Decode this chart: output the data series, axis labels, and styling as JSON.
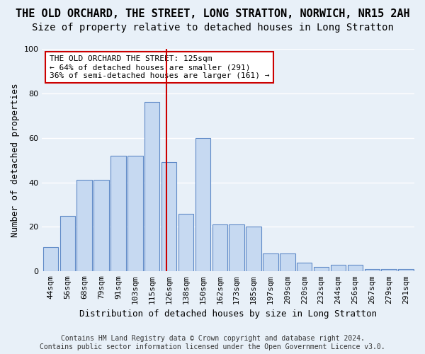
{
  "title": "THE OLD ORCHARD, THE STREET, LONG STRATTON, NORWICH, NR15 2AH",
  "subtitle": "Size of property relative to detached houses in Long Stratton",
  "xlabel": "Distribution of detached houses by size in Long Stratton",
  "ylabel": "Number of detached properties",
  "categories": [
    "44sqm",
    "56sqm",
    "68sqm",
    "79sqm",
    "91sqm",
    "103sqm",
    "115sqm",
    "126sqm",
    "138sqm",
    "150sqm",
    "162sqm",
    "173sqm",
    "185sqm",
    "197sqm",
    "209sqm",
    "220sqm",
    "232sqm",
    "244sqm",
    "256sqm",
    "267sqm",
    "279sqm",
    "291sqm"
  ],
  "values": [
    11,
    25,
    41,
    41,
    52,
    52,
    76,
    49,
    26,
    60,
    21,
    21,
    20,
    8,
    8,
    4,
    2,
    3,
    3,
    1,
    1,
    1
  ],
  "bar_color": "#c6d9f1",
  "bar_edge_color": "#5f8ac7",
  "background_color": "#e8f0f8",
  "grid_color": "#ffffff",
  "marker_line_color": "#cc0000",
  "annotation_text": "THE OLD ORCHARD THE STREET: 125sqm\n← 64% of detached houses are smaller (291)\n36% of semi-detached houses are larger (161) →",
  "annotation_box_color": "#ffffff",
  "annotation_box_edge_color": "#cc0000",
  "footer_line1": "Contains HM Land Registry data © Crown copyright and database right 2024.",
  "footer_line2": "Contains public sector information licensed under the Open Government Licence v3.0.",
  "ylim": [
    0,
    100
  ],
  "title_fontsize": 11,
  "subtitle_fontsize": 10,
  "xlabel_fontsize": 9,
  "ylabel_fontsize": 9,
  "tick_fontsize": 8,
  "annotation_fontsize": 8,
  "footer_fontsize": 7
}
